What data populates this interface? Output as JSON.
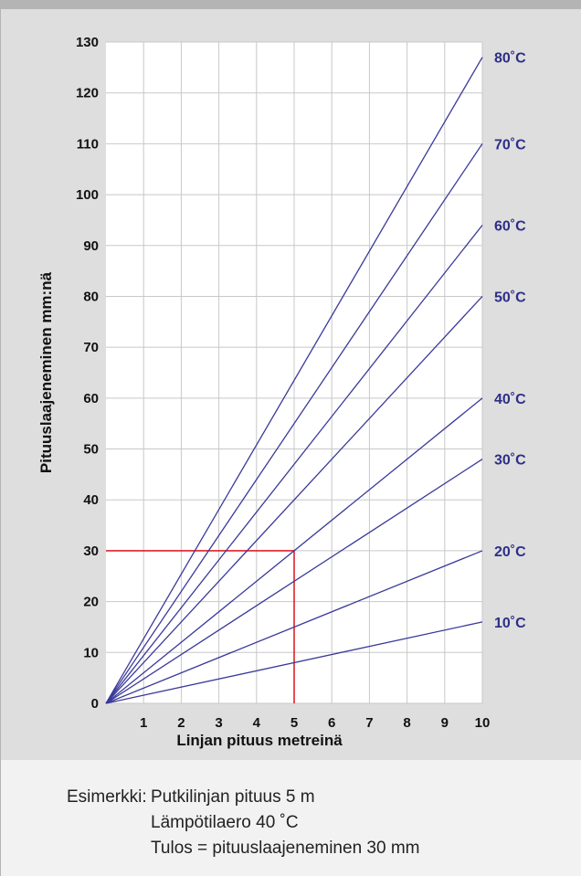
{
  "chart_data": {
    "type": "line",
    "title": "",
    "xlabel": "Linjan pituus metreinä",
    "ylabel": "Pituuslaajeneminen mm:nä",
    "xlim": [
      0,
      10
    ],
    "ylim": [
      0,
      130
    ],
    "x_ticks": [
      1,
      2,
      3,
      4,
      5,
      6,
      7,
      8,
      9,
      10
    ],
    "y_ticks": [
      0,
      10,
      20,
      30,
      40,
      50,
      60,
      70,
      80,
      90,
      100,
      110,
      120,
      130
    ],
    "grid": true,
    "line_color": "#3a3a9a",
    "series": [
      {
        "name": "10˚C",
        "x": [
          0,
          10
        ],
        "values": [
          0,
          16
        ]
      },
      {
        "name": "20˚C",
        "x": [
          0,
          10
        ],
        "values": [
          0,
          30
        ]
      },
      {
        "name": "30˚C",
        "x": [
          0,
          10
        ],
        "values": [
          0,
          48
        ]
      },
      {
        "name": "40˚C",
        "x": [
          0,
          10
        ],
        "values": [
          0,
          60
        ]
      },
      {
        "name": "50˚C",
        "x": [
          0,
          10
        ],
        "values": [
          0,
          80
        ]
      },
      {
        "name": "60˚C",
        "x": [
          0,
          10
        ],
        "values": [
          0,
          94
        ]
      },
      {
        "name": "70˚C",
        "x": [
          0,
          10
        ],
        "values": [
          0,
          110
        ]
      },
      {
        "name": "80˚C",
        "x": [
          0,
          10
        ],
        "values": [
          0,
          127
        ]
      }
    ],
    "annotation": {
      "x": 5,
      "y": 30,
      "color": "#e0202a"
    }
  },
  "example": {
    "label": "Esimerkki:",
    "line1": "Putkilinjan pituus 5 m",
    "line2": "Lämpötilaero 40 ˚C",
    "line3": "Tulos = pituuslaajeneminen 30 mm"
  }
}
